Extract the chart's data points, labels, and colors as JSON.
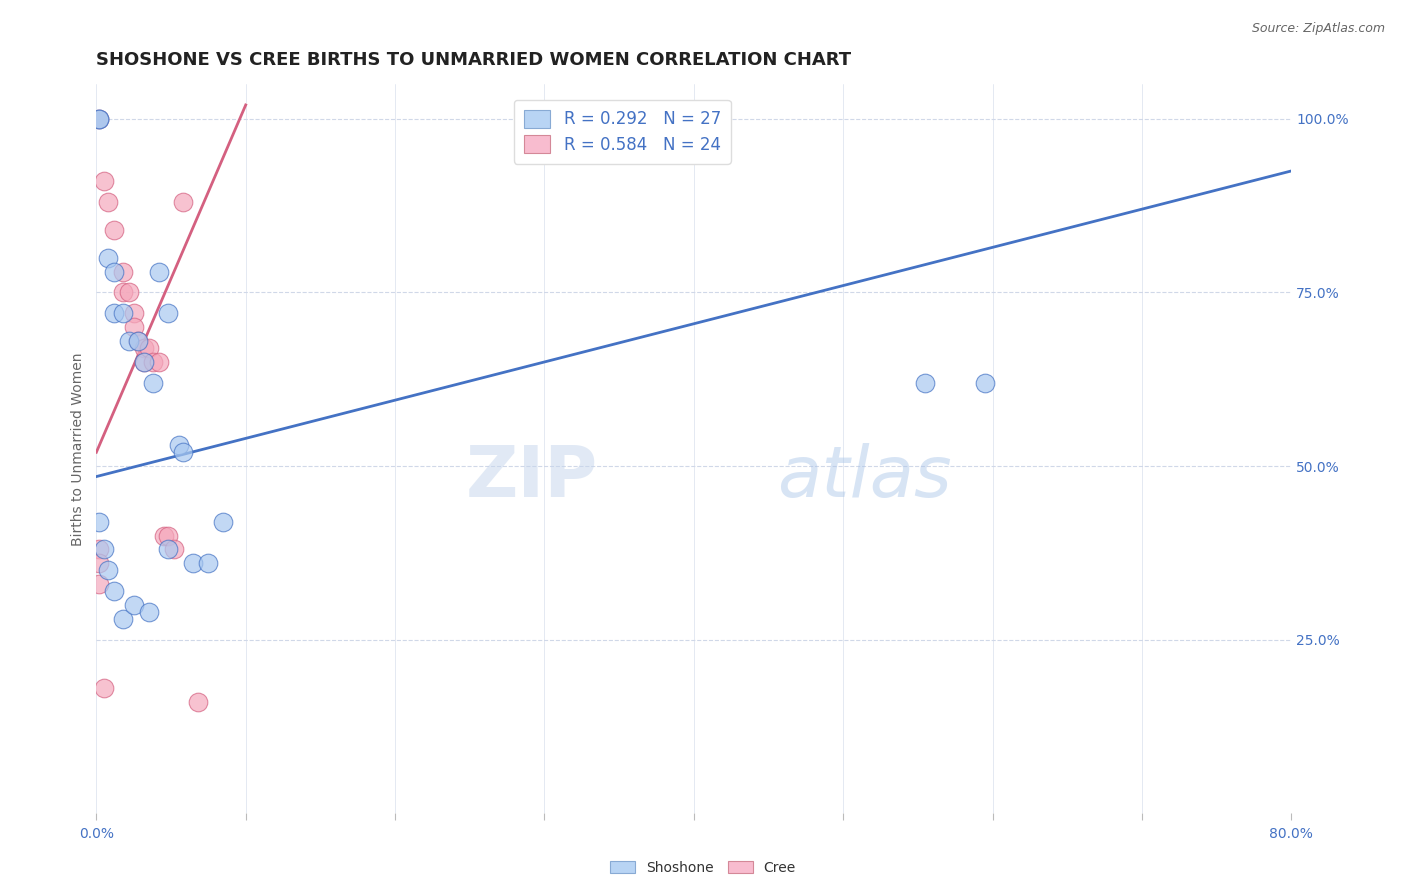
{
  "title": "SHOSHONE VS CREE BIRTHS TO UNMARRIED WOMEN CORRELATION CHART",
  "source": "Source: ZipAtlas.com",
  "ylabel": "Births to Unmarried Women",
  "xlim": [
    0.0,
    0.8
  ],
  "ylim": [
    0.0,
    1.05
  ],
  "xticks": [
    0.0,
    0.1,
    0.2,
    0.3,
    0.4,
    0.5,
    0.6,
    0.7,
    0.8
  ],
  "xticklabels": [
    "0.0%",
    "",
    "",
    "",
    "",
    "",
    "",
    "",
    "80.0%"
  ],
  "yticks_right": [
    0.25,
    0.5,
    0.75,
    1.0
  ],
  "yticklabels_right": [
    "25.0%",
    "50.0%",
    "75.0%",
    "100.0%"
  ],
  "shoshone_color": "#a8c8f0",
  "cree_color": "#f5a8bc",
  "shoshone_line_color": "#4472c4",
  "cree_line_color": "#d46080",
  "legend_box_shoshone": "#b8d4f4",
  "legend_box_cree": "#f8bccf",
  "R_shoshone": 0.292,
  "N_shoshone": 27,
  "R_cree": 0.584,
  "N_cree": 24,
  "shoshone_x": [
    0.002,
    0.002,
    0.008,
    0.012,
    0.012,
    0.018,
    0.022,
    0.028,
    0.032,
    0.038,
    0.042,
    0.048,
    0.055,
    0.058,
    0.065,
    0.075,
    0.002,
    0.005,
    0.008,
    0.012,
    0.018,
    0.025,
    0.035,
    0.048,
    0.555,
    0.595,
    0.085
  ],
  "shoshone_y": [
    1.0,
    1.0,
    0.8,
    0.78,
    0.72,
    0.72,
    0.68,
    0.68,
    0.65,
    0.62,
    0.78,
    0.72,
    0.53,
    0.52,
    0.36,
    0.36,
    0.42,
    0.38,
    0.35,
    0.32,
    0.28,
    0.3,
    0.29,
    0.38,
    0.62,
    0.62,
    0.42
  ],
  "cree_x": [
    0.002,
    0.005,
    0.008,
    0.012,
    0.018,
    0.018,
    0.022,
    0.025,
    0.025,
    0.028,
    0.032,
    0.032,
    0.035,
    0.038,
    0.042,
    0.045,
    0.048,
    0.052,
    0.058,
    0.002,
    0.002,
    0.002,
    0.005,
    0.068
  ],
  "cree_y": [
    1.0,
    0.91,
    0.88,
    0.84,
    0.78,
    0.75,
    0.75,
    0.72,
    0.7,
    0.68,
    0.67,
    0.65,
    0.67,
    0.65,
    0.65,
    0.4,
    0.4,
    0.38,
    0.88,
    0.38,
    0.36,
    0.33,
    0.18,
    0.16
  ],
  "blue_line_x": [
    0.0,
    0.8
  ],
  "blue_line_y": [
    0.485,
    0.925
  ],
  "pink_line_x": [
    0.0,
    0.1
  ],
  "pink_line_y": [
    0.52,
    1.02
  ],
  "watermark_zip": "ZIP",
  "watermark_atlas": "atlas",
  "grid_color": "#d0d8e8",
  "grid_line_style": "--",
  "background_color": "#ffffff",
  "title_fontsize": 13,
  "axis_label_fontsize": 10,
  "tick_fontsize": 10,
  "legend_fontsize": 12
}
